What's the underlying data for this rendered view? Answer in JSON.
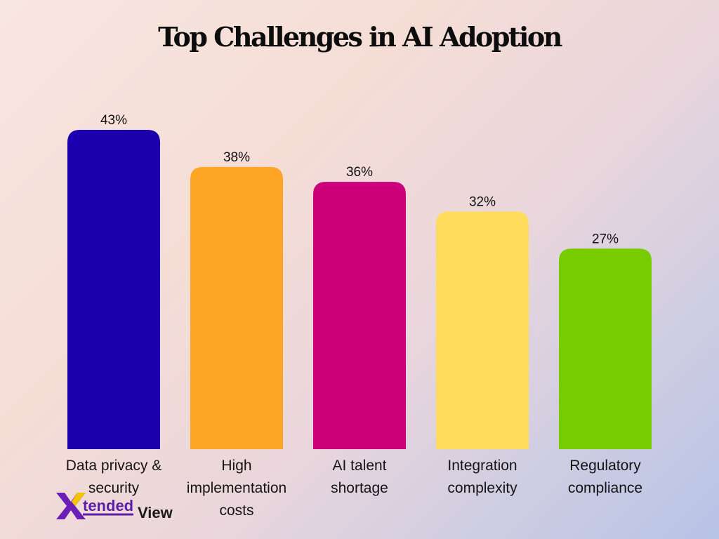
{
  "chart_data": {
    "type": "bar",
    "title": "Top Challenges in AI Adoption",
    "categories": [
      [
        "Data privacy &",
        "security"
      ],
      [
        "High",
        "implementation",
        "costs"
      ],
      [
        "AI talent",
        "shortage"
      ],
      [
        "Integration",
        "complexity"
      ],
      [
        "Regulatory",
        "compliance"
      ]
    ],
    "values": [
      43,
      38,
      36,
      32,
      27
    ],
    "value_labels": [
      "43%",
      "38%",
      "36%",
      "32%",
      "27%"
    ],
    "colors": [
      "#1c00b0",
      "#ffa526",
      "#cc007a",
      "#ffdc5c",
      "#77cc00"
    ],
    "ylim": [
      0,
      43
    ],
    "grid": false,
    "legend": "none"
  },
  "logo": {
    "x_letter": "X",
    "word1": "tended",
    "word2": "View"
  }
}
